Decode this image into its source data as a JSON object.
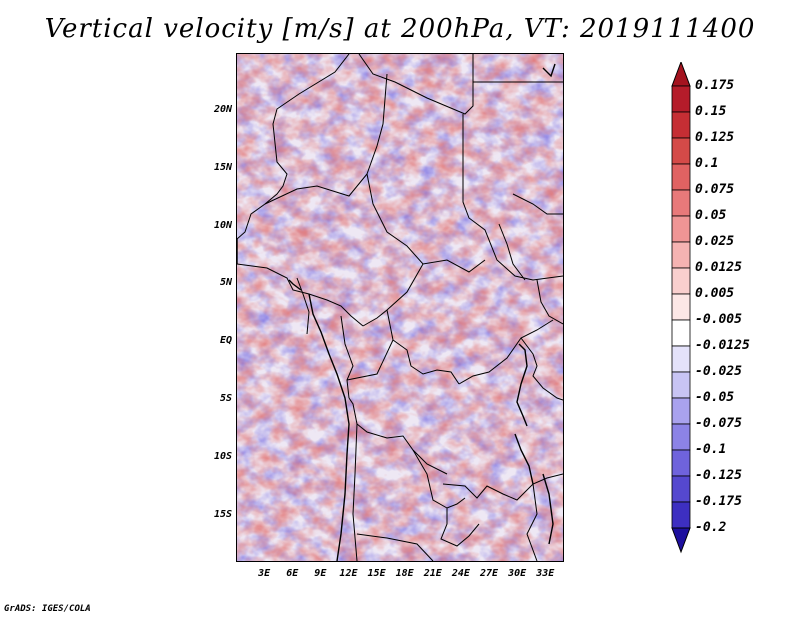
{
  "title": "Vertical velocity [m/s] at 200hPa, VT: 2019111400",
  "footer": "GrADS: IGES/COLA",
  "map": {
    "variable": "Vertical velocity",
    "units": "m/s",
    "level": "200hPa",
    "valid_time": "2019111400",
    "lat_range": [
      -19,
      25
    ],
    "lon_range": [
      0,
      35
    ],
    "lat_ticks": [
      {
        "value": 20,
        "label": "20N"
      },
      {
        "value": 15,
        "label": "15N"
      },
      {
        "value": 10,
        "label": "10N"
      },
      {
        "value": 5,
        "label": "5N"
      },
      {
        "value": 0,
        "label": "EQ"
      },
      {
        "value": -5,
        "label": "5S"
      },
      {
        "value": -10,
        "label": "10S"
      },
      {
        "value": -15,
        "label": "15S"
      }
    ],
    "lon_ticks": [
      {
        "value": 3,
        "label": "3E"
      },
      {
        "value": 6,
        "label": "6E"
      },
      {
        "value": 9,
        "label": "9E"
      },
      {
        "value": 12,
        "label": "12E"
      },
      {
        "value": 15,
        "label": "15E"
      },
      {
        "value": 18,
        "label": "18E"
      },
      {
        "value": 21,
        "label": "21E"
      },
      {
        "value": 24,
        "label": "24E"
      },
      {
        "value": 27,
        "label": "27E"
      },
      {
        "value": 30,
        "label": "30E"
      },
      {
        "value": 33,
        "label": "33E"
      }
    ]
  },
  "colorbar": {
    "levels": [
      {
        "label": "0.175",
        "color": "#b51c2a"
      },
      {
        "label": "0.15",
        "color": "#c52e34"
      },
      {
        "label": "0.125",
        "color": "#d44a48"
      },
      {
        "label": "0.1",
        "color": "#e06262"
      },
      {
        "label": "0.075",
        "color": "#e8797a"
      },
      {
        "label": "0.05",
        "color": "#ef9595"
      },
      {
        "label": "0.025",
        "color": "#f5b3b2"
      },
      {
        "label": "0.0125",
        "color": "#f9cfce"
      },
      {
        "label": "0.005",
        "color": "#fce7e6"
      },
      {
        "label": "-0.005",
        "color": "#ffffff"
      },
      {
        "label": "-0.0125",
        "color": "#e4e2fa"
      },
      {
        "label": "-0.025",
        "color": "#c8c4f4"
      },
      {
        "label": "-0.05",
        "color": "#a9a2ee"
      },
      {
        "label": "-0.075",
        "color": "#8c83e6"
      },
      {
        "label": "-0.1",
        "color": "#6f63dc"
      },
      {
        "label": "-0.125",
        "color": "#5548cf"
      },
      {
        "label": "-0.175",
        "color": "#3d2fc1"
      },
      {
        "label": "-0.2",
        "color": "#2a1cae"
      }
    ],
    "top_cap_color": "#a4131f",
    "bottom_cap_color": "#1d0f9e"
  }
}
